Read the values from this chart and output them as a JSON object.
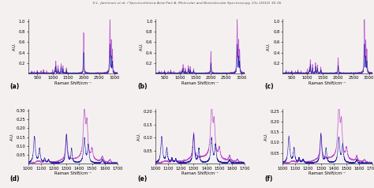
{
  "title": "E.L. Jamieson et al. / Spectrochimica Acta Part A: Molecular and Biomolecular Spectroscopy 13s (2010) 30-36",
  "top_row": {
    "xlim": [
      200,
      3100
    ],
    "ylim": [
      0,
      1.05
    ],
    "yticks": [
      0.2,
      0.4,
      0.6,
      0.8,
      1.0
    ],
    "xticks": [
      500,
      1000,
      1500,
      2000,
      2500,
      3000
    ],
    "xlabel": "Raman Shift/cm⁻¹",
    "ylabel": "A.U."
  },
  "bottom_row": {
    "xlim": [
      1000,
      1700
    ],
    "ylim_d": [
      0,
      0.31
    ],
    "ylim_e": [
      0,
      0.21
    ],
    "ylim_f": [
      0,
      0.26
    ],
    "yticks_d": [
      0.05,
      0.1,
      0.15,
      0.2,
      0.25,
      0.3
    ],
    "yticks_e": [
      0.05,
      0.1,
      0.15,
      0.2
    ],
    "yticks_f": [
      0.05,
      0.1,
      0.15,
      0.2,
      0.25
    ],
    "xticks": [
      1000,
      1100,
      1200,
      1300,
      1400,
      1500,
      1600,
      1700
    ],
    "xlabel": "Raman Shift/cm⁻¹",
    "ylabel": "A.U."
  },
  "labels": [
    "(a)",
    "(b)",
    "(c)",
    "(d)",
    "(e)",
    "(f)"
  ],
  "color_violet": "#BB55CC",
  "color_blue": "#2222AA",
  "bg_color": "#F5F0F0",
  "linewidth": 0.5
}
